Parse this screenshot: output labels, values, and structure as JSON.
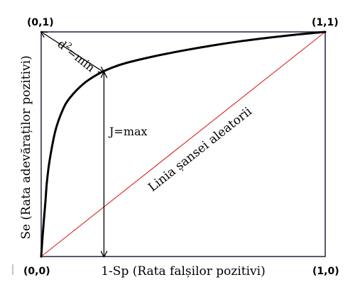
{
  "chart_data": {
    "type": "line",
    "title": "",
    "xlabel": "1-Sp (Rata falșilor pozitivi)",
    "ylabel": "Se (Rata adevăraților pozitivi)",
    "xlim": [
      0,
      1
    ],
    "ylim": [
      0,
      1
    ],
    "grid": false,
    "corner_labels": {
      "bottom_left": "(0,0)",
      "top_left": "(0,1)",
      "top_right": "(1,1)",
      "bottom_right": "(1,0)"
    },
    "series": [
      {
        "role": "roc-curve",
        "color": "#000000",
        "x": [
          0,
          0.005,
          0.01,
          0.015,
          0.02,
          0.03,
          0.05,
          0.075,
          0.1,
          0.15,
          0.2,
          0.25,
          0.3,
          0.4,
          0.5,
          0.6,
          0.7,
          0.8,
          0.9,
          1.0
        ],
        "y": [
          0,
          0.09,
          0.17,
          0.245,
          0.33,
          0.43,
          0.56,
          0.65,
          0.705,
          0.77,
          0.812,
          0.841,
          0.862,
          0.892,
          0.917,
          0.939,
          0.958,
          0.974,
          0.988,
          1.0
        ]
      },
      {
        "role": "chance-line",
        "name": "Linia șansei aleatorii",
        "color": "#d92020",
        "x": [
          0,
          1
        ],
        "y": [
          0,
          1
        ]
      }
    ],
    "annotations": [
      {
        "kind": "distance",
        "label_base": "d",
        "label_sup": "2",
        "label_rest": "=min",
        "from": [
          0,
          1
        ],
        "to": [
          0.221,
          0.82
        ]
      },
      {
        "kind": "vertical",
        "label": "J=max",
        "x": 0.221,
        "from_y": 0,
        "to_y": 0.82
      }
    ]
  }
}
